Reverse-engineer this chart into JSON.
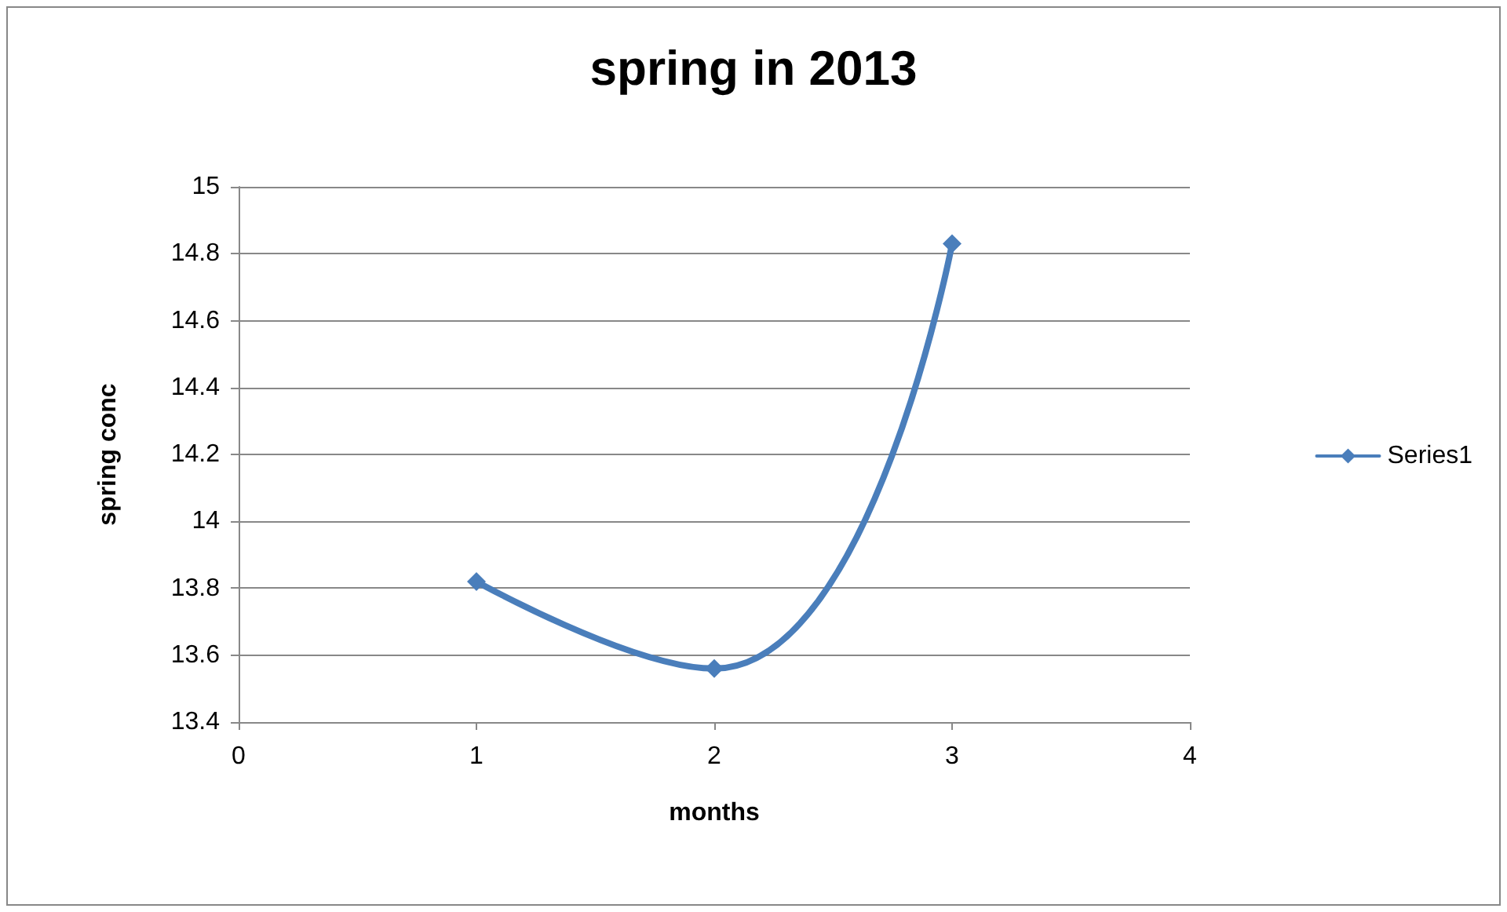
{
  "chart_data": {
    "type": "line",
    "title": "spring in 2013",
    "xlabel": "months",
    "ylabel": "spring conc",
    "x": [
      1,
      2,
      3
    ],
    "series": [
      {
        "name": "Series1",
        "color": "#4a7ebb",
        "values": [
          13.82,
          13.56,
          14.83
        ]
      }
    ],
    "xlim": [
      0,
      4
    ],
    "xticks": [
      0,
      1,
      2,
      3,
      4
    ],
    "ylim": [
      13.4,
      15
    ],
    "yticks": [
      13.4,
      13.6,
      13.8,
      14,
      14.2,
      14.4,
      14.6,
      14.8,
      15
    ],
    "grid": "y",
    "legend": "right",
    "marker": "diamond",
    "line_style": "solid"
  }
}
